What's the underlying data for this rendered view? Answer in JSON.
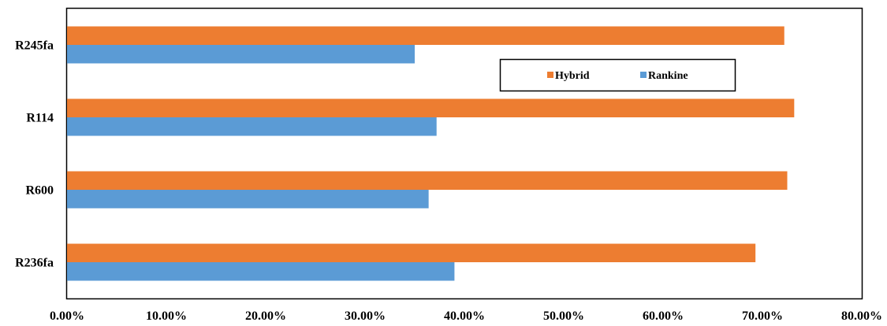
{
  "chart_data": {
    "type": "bar",
    "orientation": "horizontal",
    "categories": [
      "R236fa",
      "R600",
      "R114",
      "R245fa"
    ],
    "series": [
      {
        "name": "Hybrid",
        "color": "#ED7D31",
        "values": [
          69.3,
          72.5,
          73.2,
          72.2
        ]
      },
      {
        "name": "Rankine",
        "color": "#5B9BD5",
        "values": [
          39.0,
          36.4,
          37.2,
          35.0
        ]
      }
    ],
    "xlim": [
      0,
      80
    ],
    "x_ticks": [
      "0.00%",
      "10.00%",
      "20.00%",
      "30.00%",
      "40.00%",
      "50.00%",
      "60.00%",
      "70.00%",
      "80.00%"
    ],
    "x_tick_values": [
      0,
      10,
      20,
      30,
      40,
      50,
      60,
      70,
      80
    ],
    "legend_position": "top-right",
    "grid": false
  }
}
